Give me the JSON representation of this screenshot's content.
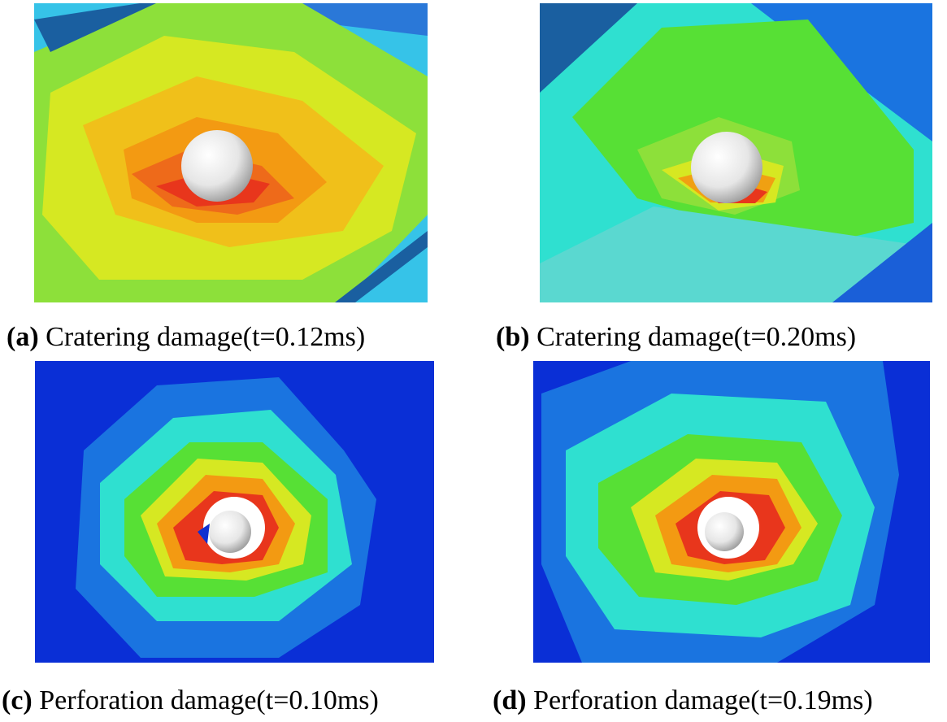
{
  "figure": {
    "panels": [
      {
        "tag": "(a)",
        "caption": " Cratering damage(t=0.12ms)"
      },
      {
        "tag": "(b)",
        "caption": " Cratering damage(t=0.20ms)"
      },
      {
        "tag": "(c)",
        "caption": " Perforation damage(t=0.10ms)"
      },
      {
        "tag": "(d)",
        "caption": " Perforation damage(t=0.19ms)"
      }
    ]
  },
  "colors": {
    "contour_red": "#e8361c",
    "contour_orange": "#f39a12",
    "contour_yellow": "#dfe61e",
    "contour_green": "#57e035",
    "contour_cyan": "#2fe0d0",
    "contour_blue": "#1a74e0",
    "contour_deep_blue": "#0a2fd6",
    "projectile": "#eeeeee"
  },
  "icons": {
    "projectile": "sphere-projectile-icon"
  }
}
